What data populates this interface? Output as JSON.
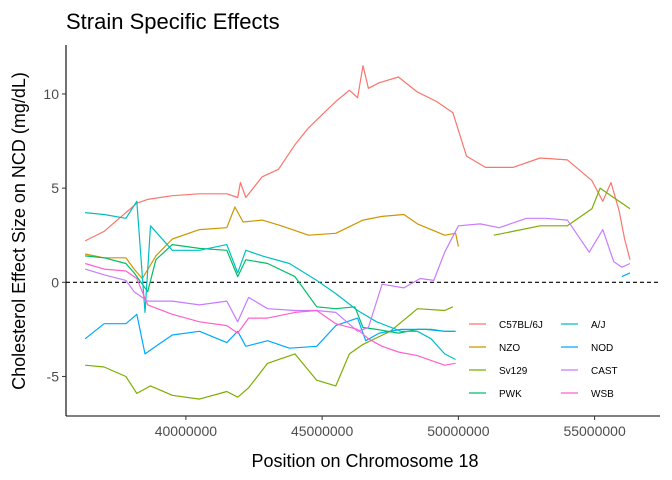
{
  "chart_data": {
    "type": "line",
    "title": "Strain Specific Effects",
    "xlabel": "Position on Chromosome 18",
    "ylabel": "Cholesterol Effect Size on NCD (mg/dL)",
    "xlim": [
      35600000,
      57400000
    ],
    "ylim": [
      -7.1,
      12.6
    ],
    "x_ticks": [
      40000000,
      45000000,
      50000000,
      55000000
    ],
    "x_tick_labels": [
      "40000000",
      "45000000",
      "50000000",
      "55000000"
    ],
    "y_ticks": [
      -5,
      0,
      5,
      10
    ],
    "y_tick_labels": [
      "-5",
      "0",
      "5",
      "10"
    ],
    "reference_line": {
      "y": 0,
      "style": "dashed"
    },
    "grid": false,
    "legend_position": "bottom-right",
    "series": [
      {
        "name": "C57BL/6J",
        "color": "#F8766D",
        "x": [
          36300000,
          37000000,
          37800000,
          38200000,
          38600000,
          39500000,
          40500000,
          41500000,
          41900000,
          42000000,
          42200000,
          42800000,
          43400000,
          44000000,
          44500000,
          45000000,
          45500000,
          46000000,
          46300000,
          46500000,
          46700000,
          47100000,
          47800000,
          48500000,
          49200000,
          49800000,
          50300000,
          51000000,
          52000000,
          53000000,
          54000000,
          54900000,
          55300000,
          55600000,
          55900000,
          56100000,
          56300000
        ],
        "values": [
          2.2,
          2.7,
          3.7,
          4.2,
          4.4,
          4.6,
          4.7,
          4.7,
          4.5,
          5.3,
          4.5,
          5.6,
          6.0,
          7.3,
          8.2,
          8.9,
          9.6,
          10.2,
          9.8,
          11.5,
          10.3,
          10.6,
          10.9,
          10.1,
          9.6,
          9.0,
          6.7,
          6.1,
          6.1,
          6.6,
          6.5,
          5.4,
          4.3,
          5.3,
          3.8,
          2.3,
          1.2
        ]
      },
      {
        "name": "NZO",
        "color": "#CD9600",
        "x": [
          36300000,
          37000000,
          37800000,
          38100000,
          38400000,
          38900000,
          39500000,
          40500000,
          41500000,
          41800000,
          42100000,
          42800000,
          43500000,
          44500000,
          45500000,
          46500000,
          47200000,
          48000000,
          48500000,
          49000000,
          49500000,
          49900000,
          50000000
        ],
        "values": [
          1.5,
          1.3,
          1.3,
          0.7,
          0.2,
          1.4,
          2.3,
          2.8,
          2.9,
          4.0,
          3.2,
          3.3,
          3.0,
          2.5,
          2.6,
          3.3,
          3.5,
          3.6,
          3.1,
          2.8,
          2.5,
          2.6,
          1.9
        ]
      },
      {
        "name": "Sv129",
        "color": "#7CAE00",
        "x": [
          36300000,
          37000000,
          37800000,
          38200000,
          38700000,
          39500000,
          40500000,
          41500000,
          41900000,
          42300000,
          43000000,
          44000000,
          44800000,
          45500000,
          46000000,
          46500000,
          47500000,
          48500000,
          49500000,
          49800000
        ],
        "values": [
          -4.4,
          -4.5,
          -5.0,
          -5.9,
          -5.5,
          -6.0,
          -6.2,
          -5.8,
          -6.1,
          -5.6,
          -4.3,
          -3.8,
          -5.2,
          -5.5,
          -3.8,
          -3.3,
          -2.6,
          -1.4,
          -1.5,
          -1.3
        ]
      },
      {
        "name": "Sv129 (right)",
        "color": "#7CAE00",
        "x": [
          51300000,
          52000000,
          53000000,
          54000000,
          54900000,
          55200000,
          55600000,
          55900000,
          56300000
        ],
        "values": [
          2.5,
          2.7,
          3.0,
          3.0,
          3.9,
          5.0,
          4.6,
          4.3,
          3.9
        ]
      },
      {
        "name": "PWK",
        "color": "#00BE67",
        "x": [
          36300000,
          37000000,
          37800000,
          38100000,
          38600000,
          38900000,
          39500000,
          40500000,
          41500000,
          41900000,
          42200000,
          43000000,
          44000000,
          44800000,
          45500000,
          46200000,
          46500000,
          47000000,
          47800000,
          48500000,
          49000000,
          49500000,
          49900000
        ],
        "values": [
          1.4,
          1.3,
          1.0,
          0.5,
          -0.5,
          1.2,
          2.0,
          1.8,
          1.7,
          0.3,
          1.2,
          1.0,
          0.3,
          -1.3,
          -1.4,
          -1.3,
          -2.4,
          -2.5,
          -2.7,
          -2.5,
          -2.5,
          -2.6,
          -2.6
        ]
      },
      {
        "name": "A/J",
        "color": "#00BFC4",
        "x": [
          36300000,
          37000000,
          37800000,
          38200000,
          38500000,
          38700000,
          39500000,
          40500000,
          41500000,
          41900000,
          42200000,
          42800000,
          43800000,
          44800000,
          45500000,
          46300000,
          47000000,
          47900000,
          48500000,
          49000000,
          49500000,
          49900000
        ],
        "values": [
          3.7,
          3.6,
          3.4,
          4.3,
          -1.6,
          3.0,
          1.7,
          1.7,
          2.0,
          0.5,
          1.7,
          1.4,
          1.0,
          0.1,
          -0.6,
          -1.5,
          -2.1,
          -2.6,
          -2.6,
          -3.0,
          -3.8,
          -4.1
        ]
      },
      {
        "name": "NOD",
        "color": "#00A9FF",
        "x": [
          36300000,
          37000000,
          37800000,
          38200000,
          38500000,
          39000000,
          39500000,
          40500000,
          41500000,
          41900000,
          42200000,
          43000000,
          43800000,
          44800000,
          45500000,
          46300000,
          46600000,
          47100000,
          47900000,
          48800000,
          49500000,
          49900000
        ],
        "values": [
          -3.0,
          -2.2,
          -2.2,
          -1.7,
          -3.8,
          -3.3,
          -2.8,
          -2.6,
          -3.2,
          -2.6,
          -3.4,
          -3.1,
          -3.5,
          -3.4,
          -2.3,
          -1.9,
          -3.1,
          -2.7,
          -2.5,
          -2.5,
          -2.6,
          -2.6
        ]
      },
      {
        "name": "NOD (right)",
        "color": "#00A9FF",
        "x": [
          56000000,
          56300000
        ],
        "values": [
          0.3,
          0.5
        ]
      },
      {
        "name": "CAST",
        "color": "#C77CFF",
        "x": [
          36300000,
          37000000,
          37800000,
          38100000,
          38600000,
          39500000,
          40500000,
          41500000,
          41900000,
          42300000,
          43000000,
          44000000,
          44800000,
          45500000,
          46300000,
          46700000,
          47200000,
          48000000,
          48600000,
          49100000,
          49500000,
          50000000,
          50800000,
          51500000,
          52500000,
          53200000,
          54000000,
          54800000,
          55300000,
          55700000,
          56000000,
          56300000
        ],
        "values": [
          0.7,
          0.4,
          0.1,
          -0.5,
          -1.0,
          -1.0,
          -1.2,
          -1.0,
          -2.1,
          -0.8,
          -1.4,
          -1.5,
          -1.5,
          -1.6,
          -2.6,
          -2.4,
          -0.1,
          -0.3,
          0.2,
          0.1,
          1.6,
          3.0,
          3.1,
          2.9,
          3.4,
          3.4,
          3.3,
          1.6,
          2.8,
          1.1,
          0.8,
          1.0
        ]
      },
      {
        "name": "WSB",
        "color": "#FF61CC",
        "x": [
          36300000,
          37000000,
          37800000,
          38200000,
          38600000,
          39500000,
          40500000,
          41500000,
          41900000,
          42300000,
          43000000,
          44000000,
          44800000,
          45500000,
          46300000,
          46700000,
          47200000,
          47800000,
          48500000,
          49100000,
          49500000,
          49900000
        ],
        "values": [
          1.0,
          0.7,
          0.6,
          0.2,
          -1.2,
          -1.7,
          -2.1,
          -2.3,
          -2.7,
          -1.9,
          -1.9,
          -1.6,
          -1.5,
          -2.2,
          -2.5,
          -3.0,
          -3.4,
          -3.7,
          -3.9,
          -4.2,
          -4.4,
          -4.3
        ]
      }
    ],
    "legend": {
      "columns": [
        [
          {
            "label": "C57BL/6J",
            "color": "#F8766D"
          },
          {
            "label": "NZO",
            "color": "#CD9600"
          },
          {
            "label": "Sv129",
            "color": "#7CAE00"
          },
          {
            "label": "PWK",
            "color": "#00BE67"
          }
        ],
        [
          {
            "label": "A/J",
            "color": "#00BFC4"
          },
          {
            "label": "NOD",
            "color": "#00A9FF"
          },
          {
            "label": "CAST",
            "color": "#C77CFF"
          },
          {
            "label": "WSB",
            "color": "#FF61CC"
          }
        ]
      ]
    }
  }
}
